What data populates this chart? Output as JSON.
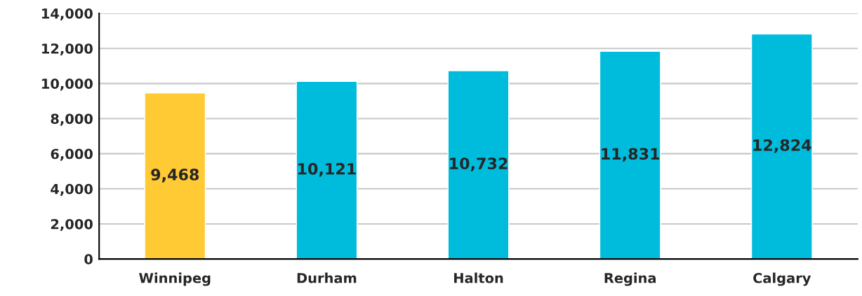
{
  "chart_data": {
    "type": "bar",
    "categories": [
      "Winnipeg",
      "Durham",
      "Halton",
      "Regina",
      "Calgary"
    ],
    "values": [
      9468,
      10121,
      10732,
      11831,
      12824
    ],
    "colors": [
      "#ffca33",
      "#00bcdc",
      "#00bcdc",
      "#00bcdc",
      "#00bcdc"
    ],
    "value_labels": [
      "9,468",
      "10,121",
      "10,732",
      "11,831",
      "12,824"
    ],
    "ylim": [
      0,
      14000
    ],
    "yticks": [
      {
        "value": 0,
        "label": "0"
      },
      {
        "value": 2000,
        "label": "2,000"
      },
      {
        "value": 4000,
        "label": "4,000"
      },
      {
        "value": 6000,
        "label": "6,000"
      },
      {
        "value": 8000,
        "label": "8,000"
      },
      {
        "value": 10000,
        "label": "10,000"
      },
      {
        "value": 12000,
        "label": "12,000"
      },
      {
        "value": 14000,
        "label": "14,000"
      }
    ],
    "grid": "y"
  }
}
